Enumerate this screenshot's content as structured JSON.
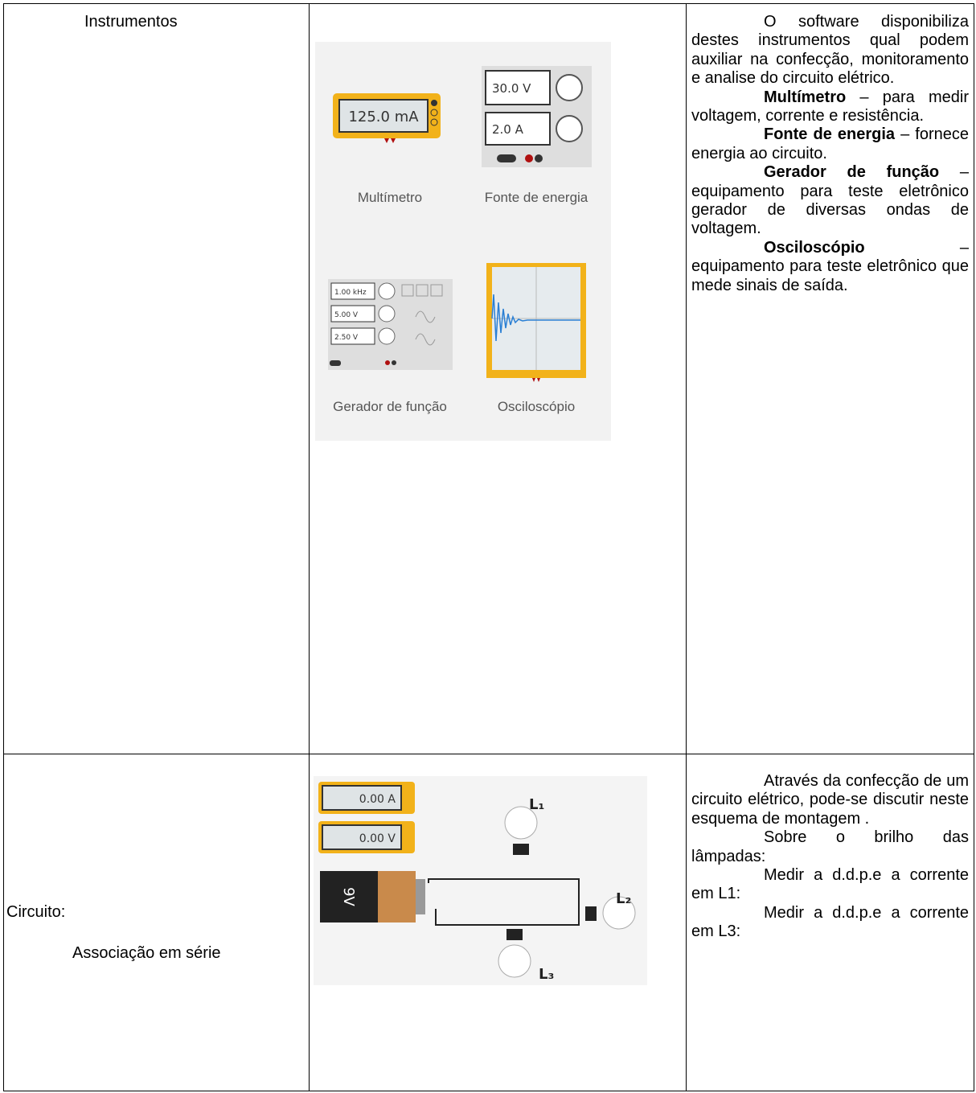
{
  "table": {
    "rows": [
      {
        "label": "Instrumentos",
        "instruments": [
          {
            "name": "Multímetro",
            "displays": [
              "125.0 mA"
            ]
          },
          {
            "name": "Fonte de energia",
            "displays": [
              "30.0 V",
              "2.0 A"
            ]
          },
          {
            "name": "Gerador de função",
            "displays": [
              "1.00 kHz",
              "5.00 V",
              "2.50 V"
            ]
          },
          {
            "name": "Osciloscópio"
          }
        ],
        "description": [
          {
            "text": "O software disponibiliza destes instrumentos qual podem auxiliar na confecção, monitoramento e analise do circuito elétrico."
          },
          {
            "term": "Multímetro",
            "text": " – para medir voltagem, corrente e resistência."
          },
          {
            "term": "Fonte de energia",
            "text": " – fornece energia ao circuito."
          },
          {
            "term": "Gerador de função",
            "text": " – equipamento para teste eletrônico gerador de diversas ondas de voltagem."
          },
          {
            "term": "Osciloscópio",
            "text": " – equipamento para teste eletrônico que mede sinais de saída."
          }
        ]
      },
      {
        "label": "Circuito:",
        "sublabel": "Associação em série",
        "circuit": {
          "ammeter": "0.00 A",
          "voltmeter": "0.00 V",
          "battery": "9V",
          "lamps": [
            "L₁",
            "L₂",
            "L₃"
          ]
        },
        "description": [
          {
            "text": "Através da confecção de um circuito elétrico, pode-se discutir neste esquema de montagem ."
          },
          {
            "text": "Sobre o brilho das lâmpadas:"
          },
          {
            "text": "Medir a d.d.p.e a corrente em L1:"
          },
          {
            "text": "Medir a d.d.p.e a corrente em L3:"
          }
        ]
      }
    ]
  }
}
